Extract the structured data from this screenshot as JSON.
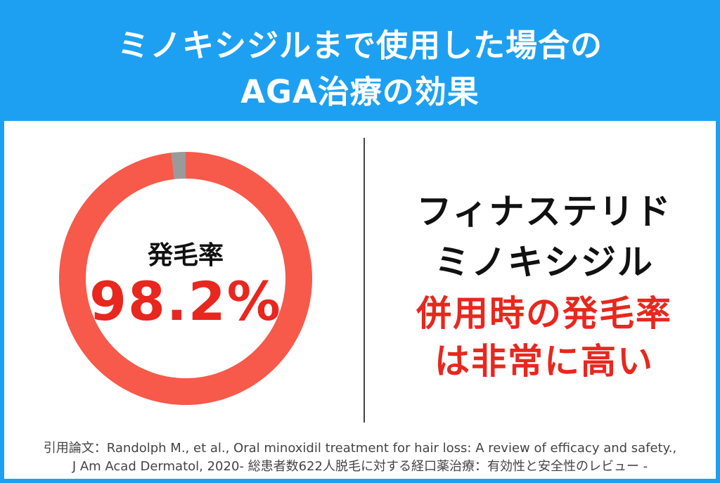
{
  "header": {
    "title_line1": "ミノキシジルまで使用した場合の",
    "title_line2": "AGA治療の効果"
  },
  "colors": {
    "accent_blue": "#1ea0f2",
    "donut_main": "#f7594a",
    "donut_rest": "#9a9a9a",
    "highlight_red": "#e8271e"
  },
  "chart_data": {
    "type": "pie",
    "donut": true,
    "center_label": "発毛率",
    "center_value": "98.2%",
    "slices": [
      {
        "value": 98.2,
        "color": "#f7594a"
      },
      {
        "value": 1.8,
        "color": "#9a9a9a"
      }
    ]
  },
  "right": {
    "line1": "フィナステリド",
    "line2": "ミノキシジル",
    "line3": "併用時の発毛率",
    "line4": "は非常に高い"
  },
  "citation": {
    "line1": "引用論文：Randolph M., et al., Oral minoxidil treatment for hair loss: A review of efficacy and safety.,",
    "line2": "J Am Acad Dermatol, 2020- 総患者数622人脱毛に対する経口薬治療：有効性と安全性のレビュー -"
  }
}
